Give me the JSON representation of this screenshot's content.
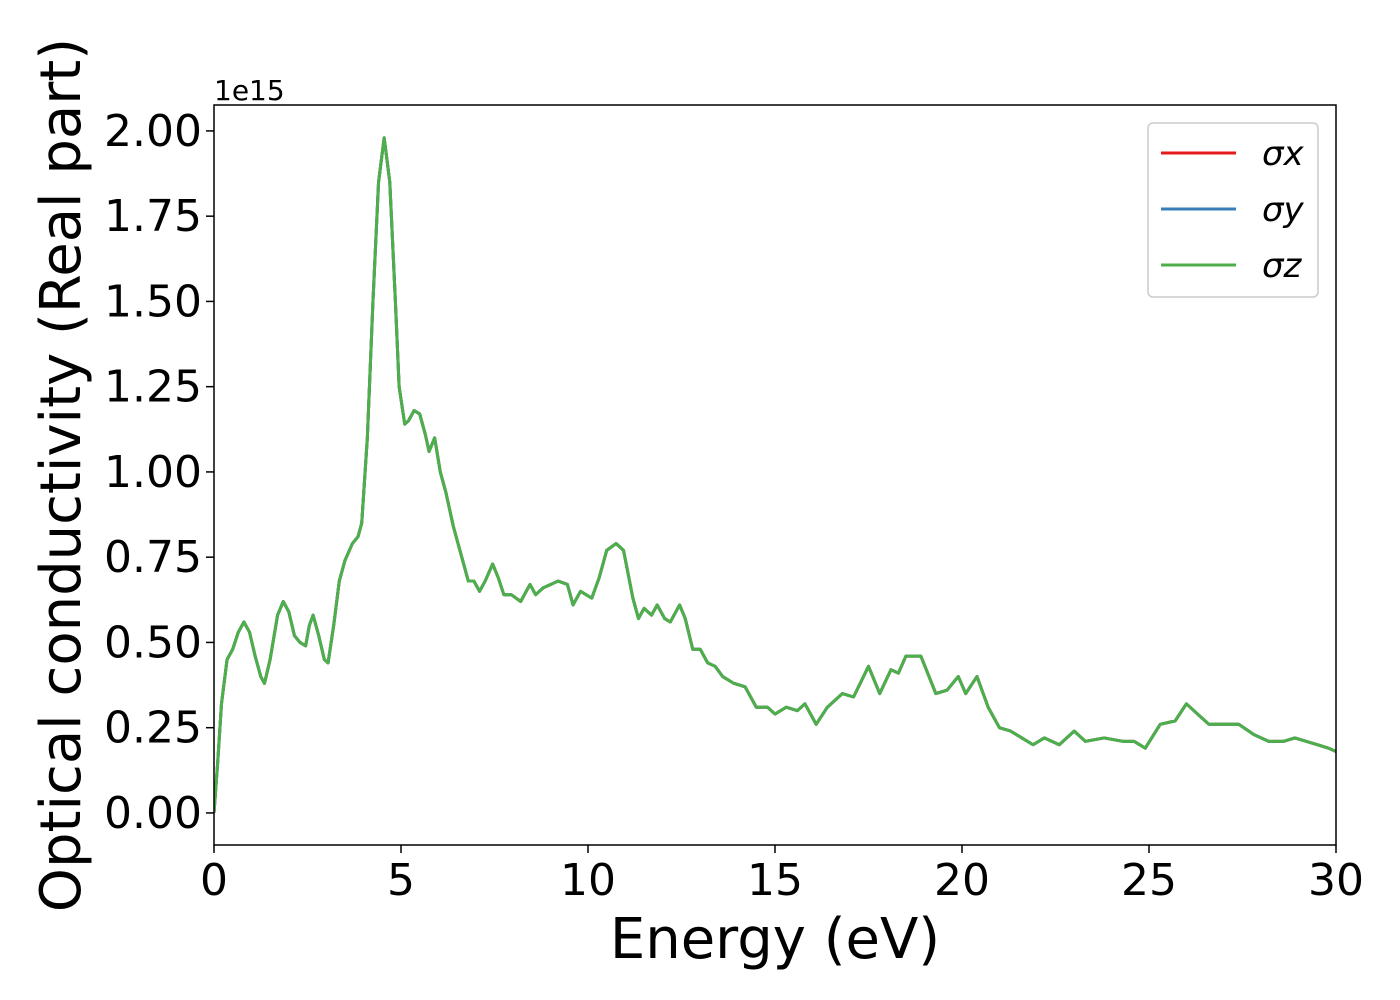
{
  "chart_data": {
    "type": "line",
    "xlabel": "Energy (eV)",
    "ylabel": "Optical conductivity (Real part)",
    "offset_label": "1e15",
    "x": [
      0,
      0.1,
      0.2,
      0.35,
      0.5,
      0.65,
      0.8,
      0.95,
      1.1,
      1.25,
      1.35,
      1.5,
      1.7,
      1.85,
      2.0,
      2.15,
      2.3,
      2.45,
      2.55,
      2.65,
      2.8,
      2.95,
      3.05,
      3.2,
      3.35,
      3.5,
      3.7,
      3.85,
      3.95,
      4.1,
      4.25,
      4.4,
      4.55,
      4.7,
      4.85,
      4.95,
      5.1,
      5.2,
      5.35,
      5.5,
      5.65,
      5.75,
      5.9,
      6.05,
      6.2,
      6.4,
      6.6,
      6.8,
      6.95,
      7.1,
      7.25,
      7.45,
      7.6,
      7.75,
      7.95,
      8.2,
      8.45,
      8.6,
      8.8,
      9.0,
      9.2,
      9.45,
      9.6,
      9.8,
      10.1,
      10.3,
      10.5,
      10.75,
      10.95,
      11.2,
      11.35,
      11.5,
      11.7,
      11.85,
      12.05,
      12.2,
      12.45,
      12.6,
      12.8,
      13.0,
      13.2,
      13.4,
      13.6,
      13.9,
      14.2,
      14.5,
      14.8,
      15.0,
      15.3,
      15.6,
      15.8,
      16.1,
      16.4,
      16.8,
      17.1,
      17.5,
      17.8,
      18.1,
      18.3,
      18.5,
      18.9,
      19.3,
      19.6,
      19.9,
      20.1,
      20.4,
      20.7,
      21.0,
      21.3,
      21.6,
      21.9,
      22.2,
      22.6,
      23.0,
      23.3,
      23.8,
      24.3,
      24.6,
      24.9,
      25.3,
      25.7,
      26.0,
      26.4,
      26.6,
      27.0,
      27.4,
      27.8,
      28.2,
      28.6,
      28.9,
      29.2,
      29.5,
      29.8,
      30.0
    ],
    "series": [
      {
        "name": "σx",
        "color": "#e41a1c",
        "values": [
          0,
          0.15,
          0.32,
          0.45,
          0.48,
          0.53,
          0.56,
          0.53,
          0.46,
          0.4,
          0.38,
          0.45,
          0.58,
          0.62,
          0.59,
          0.52,
          0.5,
          0.49,
          0.55,
          0.58,
          0.52,
          0.45,
          0.44,
          0.55,
          0.68,
          0.74,
          0.79,
          0.81,
          0.85,
          1.1,
          1.5,
          1.85,
          1.98,
          1.85,
          1.5,
          1.25,
          1.14,
          1.15,
          1.18,
          1.17,
          1.11,
          1.06,
          1.1,
          1.0,
          0.94,
          0.84,
          0.76,
          0.68,
          0.68,
          0.65,
          0.68,
          0.73,
          0.69,
          0.64,
          0.64,
          0.62,
          0.67,
          0.64,
          0.66,
          0.67,
          0.68,
          0.67,
          0.61,
          0.65,
          0.63,
          0.69,
          0.77,
          0.79,
          0.77,
          0.63,
          0.57,
          0.6,
          0.58,
          0.61,
          0.57,
          0.56,
          0.61,
          0.57,
          0.48,
          0.48,
          0.44,
          0.43,
          0.4,
          0.38,
          0.37,
          0.31,
          0.31,
          0.29,
          0.31,
          0.3,
          0.32,
          0.26,
          0.31,
          0.35,
          0.34,
          0.43,
          0.35,
          0.42,
          0.41,
          0.46,
          0.46,
          0.35,
          0.36,
          0.4,
          0.35,
          0.4,
          0.31,
          0.25,
          0.24,
          0.22,
          0.2,
          0.22,
          0.2,
          0.24,
          0.21,
          0.22,
          0.21,
          0.21,
          0.19,
          0.26,
          0.27,
          0.32,
          0.28,
          0.26,
          0.26,
          0.26,
          0.23,
          0.21,
          0.21,
          0.22,
          0.21,
          0.2,
          0.19,
          0.18
        ]
      },
      {
        "name": "σy",
        "color": "#377eb8",
        "values": [
          0,
          0.15,
          0.32,
          0.45,
          0.48,
          0.53,
          0.56,
          0.53,
          0.46,
          0.4,
          0.38,
          0.45,
          0.58,
          0.62,
          0.59,
          0.52,
          0.5,
          0.49,
          0.55,
          0.58,
          0.52,
          0.45,
          0.44,
          0.55,
          0.68,
          0.74,
          0.79,
          0.81,
          0.85,
          1.1,
          1.5,
          1.85,
          1.98,
          1.85,
          1.5,
          1.25,
          1.14,
          1.15,
          1.18,
          1.17,
          1.11,
          1.06,
          1.1,
          1.0,
          0.94,
          0.84,
          0.76,
          0.68,
          0.68,
          0.65,
          0.68,
          0.73,
          0.69,
          0.64,
          0.64,
          0.62,
          0.67,
          0.64,
          0.66,
          0.67,
          0.68,
          0.67,
          0.61,
          0.65,
          0.63,
          0.69,
          0.77,
          0.79,
          0.77,
          0.63,
          0.57,
          0.6,
          0.58,
          0.61,
          0.57,
          0.56,
          0.61,
          0.57,
          0.48,
          0.48,
          0.44,
          0.43,
          0.4,
          0.38,
          0.37,
          0.31,
          0.31,
          0.29,
          0.31,
          0.3,
          0.32,
          0.26,
          0.31,
          0.35,
          0.34,
          0.43,
          0.35,
          0.42,
          0.41,
          0.46,
          0.46,
          0.35,
          0.36,
          0.4,
          0.35,
          0.4,
          0.31,
          0.25,
          0.24,
          0.22,
          0.2,
          0.22,
          0.2,
          0.24,
          0.21,
          0.22,
          0.21,
          0.21,
          0.19,
          0.26,
          0.27,
          0.32,
          0.28,
          0.26,
          0.26,
          0.26,
          0.23,
          0.21,
          0.21,
          0.22,
          0.21,
          0.2,
          0.19,
          0.18
        ]
      },
      {
        "name": "σz",
        "color": "#4daf4a",
        "values": [
          0,
          0.15,
          0.32,
          0.45,
          0.48,
          0.53,
          0.56,
          0.53,
          0.46,
          0.4,
          0.38,
          0.45,
          0.58,
          0.62,
          0.59,
          0.52,
          0.5,
          0.49,
          0.55,
          0.58,
          0.52,
          0.45,
          0.44,
          0.55,
          0.68,
          0.74,
          0.79,
          0.81,
          0.85,
          1.1,
          1.5,
          1.85,
          1.98,
          1.85,
          1.5,
          1.25,
          1.14,
          1.15,
          1.18,
          1.17,
          1.11,
          1.06,
          1.1,
          1.0,
          0.94,
          0.84,
          0.76,
          0.68,
          0.68,
          0.65,
          0.68,
          0.73,
          0.69,
          0.64,
          0.64,
          0.62,
          0.67,
          0.64,
          0.66,
          0.67,
          0.68,
          0.67,
          0.61,
          0.65,
          0.63,
          0.69,
          0.77,
          0.79,
          0.77,
          0.63,
          0.57,
          0.6,
          0.58,
          0.61,
          0.57,
          0.56,
          0.61,
          0.57,
          0.48,
          0.48,
          0.44,
          0.43,
          0.4,
          0.38,
          0.37,
          0.31,
          0.31,
          0.29,
          0.31,
          0.3,
          0.32,
          0.26,
          0.31,
          0.35,
          0.34,
          0.43,
          0.35,
          0.42,
          0.41,
          0.46,
          0.46,
          0.35,
          0.36,
          0.4,
          0.35,
          0.4,
          0.31,
          0.25,
          0.24,
          0.22,
          0.2,
          0.22,
          0.2,
          0.24,
          0.21,
          0.22,
          0.21,
          0.21,
          0.19,
          0.26,
          0.27,
          0.32,
          0.28,
          0.26,
          0.26,
          0.26,
          0.23,
          0.21,
          0.21,
          0.22,
          0.21,
          0.2,
          0.19,
          0.18
        ]
      }
    ],
    "xlim": [
      0,
      30
    ],
    "xticks": [
      0,
      5,
      10,
      15,
      20,
      25,
      30
    ],
    "ylim": [
      -0.094,
      2.076
    ],
    "yticks": [
      {
        "value": 0,
        "label": "0.00"
      },
      {
        "value": 0.25,
        "label": "0.25"
      },
      {
        "value": 0.5,
        "label": "0.50"
      },
      {
        "value": 0.75,
        "label": "0.75"
      },
      {
        "value": 1,
        "label": "1.00"
      },
      {
        "value": 1.25,
        "label": "1.25"
      },
      {
        "value": 1.5,
        "label": "1.50"
      },
      {
        "value": 1.75,
        "label": "1.75"
      },
      {
        "value": 2,
        "label": "2.00"
      }
    ],
    "legend": "upper right"
  }
}
